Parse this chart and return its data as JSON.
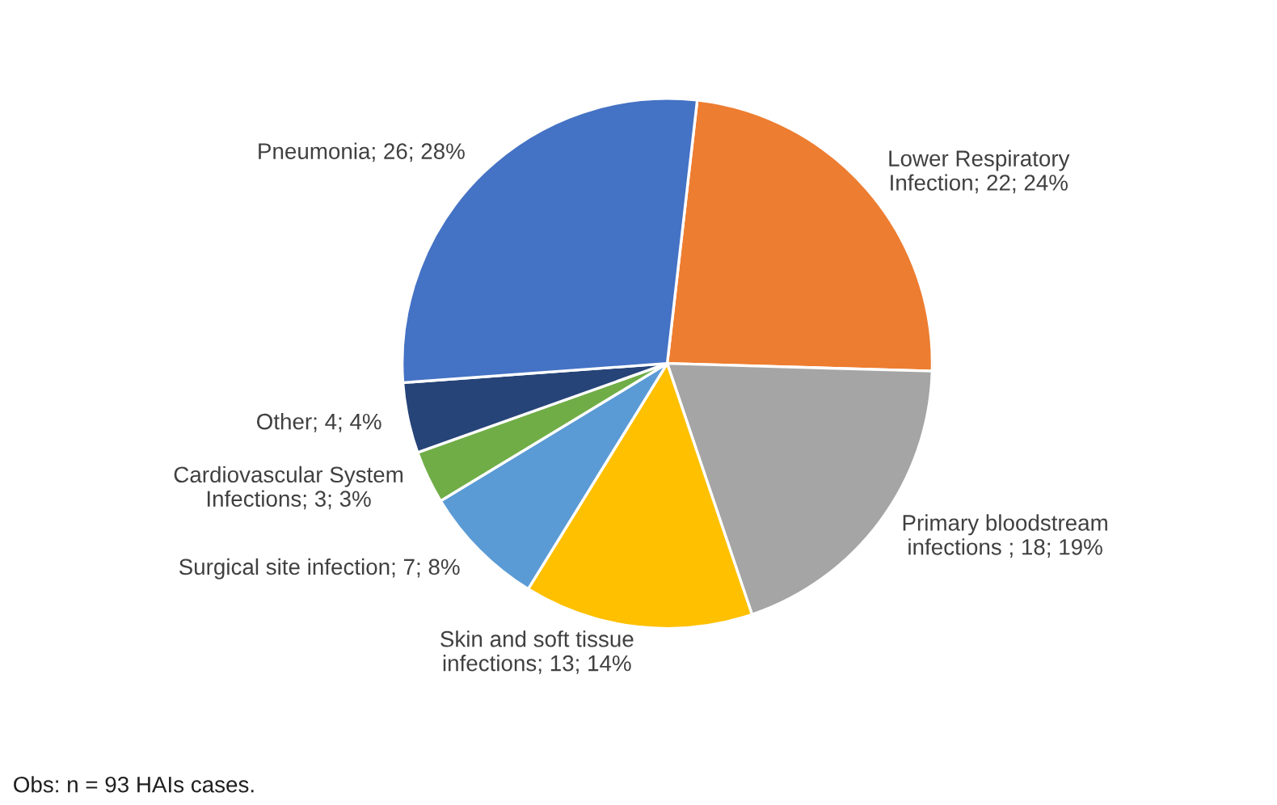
{
  "chart_data": {
    "type": "pie",
    "categories": [
      "Lower Respiratory\nInfection",
      "Primary bloodstream\ninfections ",
      "Skin and soft tissue\ninfections",
      "Surgical site infection",
      "Cardiovascular System\nInfections",
      "Other",
      "Pneumonia"
    ],
    "values": [
      22,
      18,
      13,
      7,
      3,
      4,
      26
    ],
    "value_labels": [
      "22; 24%",
      "18; 19%",
      "13; 14%",
      "7; 8%",
      "3; 3%",
      "4; 4%",
      "26; 28%"
    ],
    "colors": [
      "#ed7d31",
      "#a5a5a5",
      "#ffc000",
      "#5b9bd5",
      "#70ad47",
      "#264478",
      "#4472c4"
    ],
    "annotations": [
      "Obs: n = 93 HAIs cases."
    ]
  }
}
